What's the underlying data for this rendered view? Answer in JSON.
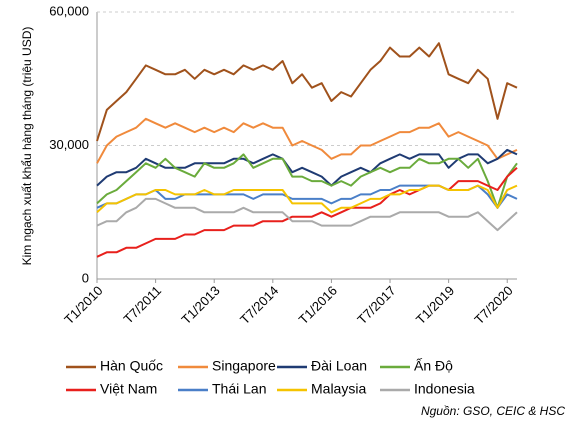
{
  "chart_data": {
    "type": "line",
    "y_label": "Kim ngạch xuất khẩu hàng tháng (triệu USD)",
    "source": "Nguồn: GSO, CEIC & HSC",
    "categories": [
      "T1/2010",
      null,
      null,
      null,
      null,
      null,
      "T7/2011",
      null,
      null,
      null,
      null,
      null,
      "T1/2013",
      null,
      null,
      null,
      null,
      null,
      "T7/2014",
      null,
      null,
      null,
      null,
      null,
      "T1/2016",
      null,
      null,
      null,
      null,
      null,
      "T7/2017",
      null,
      null,
      null,
      null,
      null,
      "T1/2019",
      null,
      null,
      null,
      null,
      null,
      "T7/2020",
      null
    ],
    "ylim": [
      0,
      60000
    ],
    "yticks": [
      0,
      {
        "value": 30000,
        "label": "30,000"
      },
      {
        "value": 60000,
        "label": "60,000"
      }
    ],
    "grid": true,
    "series": [
      {
        "name": "Hàn Quốc",
        "color": "#a0521c",
        "values": [
          31000,
          38000,
          40000,
          42000,
          45000,
          48000,
          47000,
          46000,
          46000,
          47000,
          45000,
          47000,
          46000,
          47000,
          46000,
          48000,
          47000,
          48000,
          47000,
          49000,
          44000,
          46000,
          43000,
          44000,
          40000,
          42000,
          41000,
          44000,
          47000,
          49000,
          52000,
          50000,
          50000,
          52000,
          50000,
          53000,
          46000,
          45000,
          44000,
          47000,
          45000,
          36000,
          44000,
          43000
        ]
      },
      {
        "name": "Singapore",
        "color": "#f08a3c",
        "values": [
          26000,
          30000,
          32000,
          33000,
          34000,
          36000,
          35000,
          34000,
          35000,
          34000,
          33000,
          34000,
          33000,
          34000,
          33000,
          35000,
          34000,
          35000,
          34000,
          34000,
          30000,
          31000,
          30000,
          29000,
          27000,
          28000,
          28000,
          30000,
          30000,
          31000,
          32000,
          33000,
          33000,
          34000,
          34000,
          35000,
          32000,
          33000,
          32000,
          31000,
          30000,
          27000,
          28000,
          29000
        ]
      },
      {
        "name": "Đài Loan",
        "color": "#1f3b73",
        "values": [
          21000,
          23000,
          24000,
          24000,
          25000,
          27000,
          26000,
          25000,
          25000,
          25000,
          26000,
          26000,
          26000,
          26000,
          27000,
          27000,
          26000,
          27000,
          28000,
          27000,
          24000,
          25000,
          24000,
          23000,
          21000,
          23000,
          24000,
          25000,
          24000,
          26000,
          27000,
          28000,
          27000,
          28000,
          28000,
          28000,
          25000,
          27000,
          28000,
          28000,
          26000,
          27000,
          29000,
          28000
        ]
      },
      {
        "name": "Ấn Độ",
        "color": "#6aab3c",
        "values": [
          17000,
          19000,
          20000,
          22000,
          24000,
          26000,
          25000,
          27000,
          25000,
          24000,
          23000,
          26000,
          25000,
          25000,
          26000,
          28000,
          25000,
          26000,
          27000,
          27000,
          23000,
          23000,
          22000,
          22000,
          21000,
          22000,
          21000,
          23000,
          24000,
          25000,
          24000,
          25000,
          25000,
          27000,
          26000,
          26000,
          27000,
          27000,
          25000,
          27000,
          22000,
          16000,
          23000,
          26000
        ]
      },
      {
        "name": "Việt Nam",
        "color": "#e8201c",
        "values": [
          5000,
          6000,
          6000,
          7000,
          7000,
          8000,
          9000,
          9000,
          9000,
          10000,
          10000,
          11000,
          11000,
          11000,
          12000,
          12000,
          12000,
          13000,
          13000,
          13000,
          14000,
          14000,
          14000,
          15000,
          14000,
          15000,
          16000,
          16000,
          16000,
          17000,
          19000,
          20000,
          19000,
          20000,
          21000,
          21000,
          20000,
          22000,
          22000,
          22000,
          21000,
          20000,
          23000,
          25000
        ]
      },
      {
        "name": "Thái Lan",
        "color": "#4a7fc8",
        "values": [
          16000,
          17000,
          17000,
          18000,
          19000,
          19000,
          20000,
          18000,
          18000,
          19000,
          19000,
          19000,
          19000,
          19000,
          19000,
          19000,
          18000,
          19000,
          19000,
          19000,
          18000,
          18000,
          18000,
          18000,
          17000,
          18000,
          18000,
          19000,
          19000,
          20000,
          20000,
          21000,
          21000,
          21000,
          21000,
          21000,
          20000,
          20000,
          20000,
          21000,
          19000,
          16000,
          19000,
          18000
        ]
      },
      {
        "name": "Malaysia",
        "color": "#f5c300",
        "values": [
          15000,
          17000,
          17000,
          18000,
          19000,
          19000,
          20000,
          20000,
          19000,
          19000,
          19000,
          20000,
          19000,
          19000,
          20000,
          20000,
          20000,
          20000,
          20000,
          20000,
          17000,
          17000,
          17000,
          17000,
          15000,
          16000,
          16000,
          17000,
          18000,
          18000,
          19000,
          19000,
          20000,
          20000,
          21000,
          21000,
          20000,
          20000,
          20000,
          21000,
          20000,
          16000,
          20000,
          21000
        ]
      },
      {
        "name": "Indonesia",
        "color": "#aaaaaa",
        "values": [
          12000,
          13000,
          13000,
          15000,
          16000,
          18000,
          18000,
          17000,
          16000,
          16000,
          16000,
          15000,
          15000,
          15000,
          15000,
          16000,
          15000,
          15000,
          15000,
          15000,
          13000,
          13000,
          13000,
          12000,
          12000,
          12000,
          12000,
          13000,
          14000,
          14000,
          14000,
          15000,
          15000,
          15000,
          15000,
          15000,
          14000,
          14000,
          14000,
          15000,
          13000,
          11000,
          13000,
          15000
        ]
      }
    ]
  }
}
